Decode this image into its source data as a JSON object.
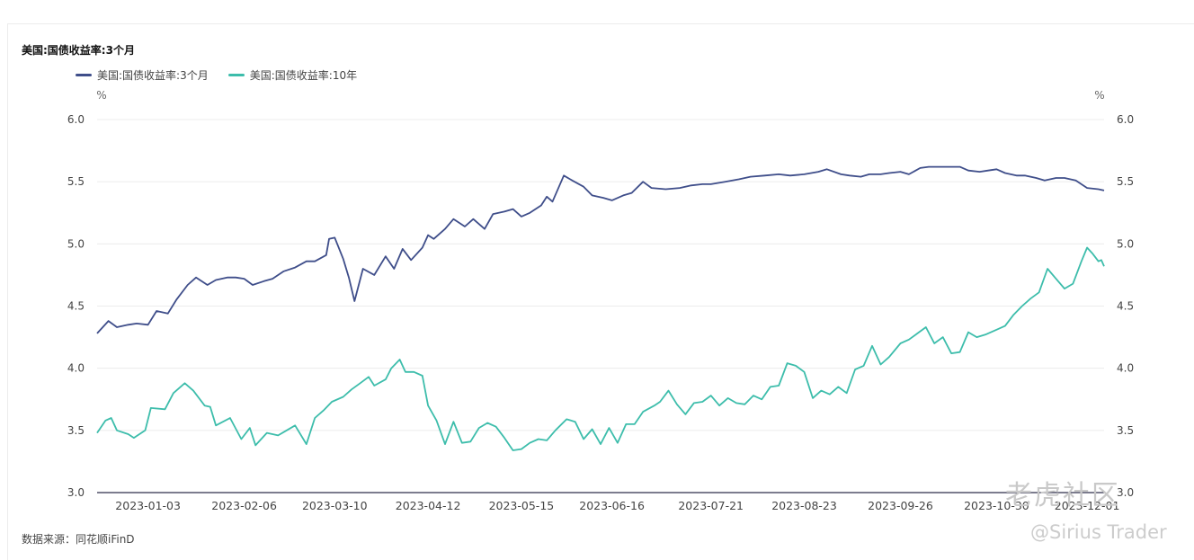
{
  "chart_data": {
    "type": "line",
    "title": "美国:国债收益率:3个月",
    "left_unit": "%",
    "right_unit": "%",
    "ylim": [
      3.0,
      6.0
    ],
    "y_ticks": [
      "3.0",
      "3.5",
      "4.0",
      "4.5",
      "5.0",
      "5.5",
      "6.0"
    ],
    "x_range": [
      "2022-12-16",
      "2023-12-07"
    ],
    "x_tick_labels": [
      "2023-01-03",
      "2023-02-06",
      "2023-03-10",
      "2023-04-12",
      "2023-05-15",
      "2023-06-16",
      "2023-07-21",
      "2023-08-23",
      "2023-09-26",
      "2023-10-30",
      "2023-12-01"
    ],
    "grid": "horizontal",
    "legend": "top-left",
    "series": [
      {
        "name": "美国:国债收益率:3个月",
        "color": "#3f4e8a",
        "points": [
          [
            "2022-12-16",
            4.28
          ],
          [
            "2022-12-20",
            4.38
          ],
          [
            "2022-12-23",
            4.33
          ],
          [
            "2022-12-27",
            4.35
          ],
          [
            "2022-12-30",
            4.36
          ],
          [
            "2023-01-03",
            4.35
          ],
          [
            "2023-01-06",
            4.46
          ],
          [
            "2023-01-10",
            4.44
          ],
          [
            "2023-01-13",
            4.55
          ],
          [
            "2023-01-17",
            4.67
          ],
          [
            "2023-01-20",
            4.73
          ],
          [
            "2023-01-24",
            4.67
          ],
          [
            "2023-01-27",
            4.71
          ],
          [
            "2023-01-31",
            4.73
          ],
          [
            "2023-02-03",
            4.73
          ],
          [
            "2023-02-06",
            4.72
          ],
          [
            "2023-02-09",
            4.67
          ],
          [
            "2023-02-13",
            4.7
          ],
          [
            "2023-02-16",
            4.72
          ],
          [
            "2023-02-20",
            4.78
          ],
          [
            "2023-02-24",
            4.81
          ],
          [
            "2023-02-28",
            4.86
          ],
          [
            "2023-03-03",
            4.86
          ],
          [
            "2023-03-07",
            4.91
          ],
          [
            "2023-03-08",
            5.04
          ],
          [
            "2023-03-10",
            5.05
          ],
          [
            "2023-03-13",
            4.88
          ],
          [
            "2023-03-15",
            4.73
          ],
          [
            "2023-03-17",
            4.54
          ],
          [
            "2023-03-20",
            4.8
          ],
          [
            "2023-03-24",
            4.75
          ],
          [
            "2023-03-28",
            4.9
          ],
          [
            "2023-03-31",
            4.8
          ],
          [
            "2023-04-03",
            4.96
          ],
          [
            "2023-04-06",
            4.87
          ],
          [
            "2023-04-10",
            4.97
          ],
          [
            "2023-04-12",
            5.07
          ],
          [
            "2023-04-14",
            5.04
          ],
          [
            "2023-04-18",
            5.12
          ],
          [
            "2023-04-21",
            5.2
          ],
          [
            "2023-04-25",
            5.14
          ],
          [
            "2023-04-28",
            5.2
          ],
          [
            "2023-05-02",
            5.12
          ],
          [
            "2023-05-05",
            5.24
          ],
          [
            "2023-05-09",
            5.26
          ],
          [
            "2023-05-12",
            5.28
          ],
          [
            "2023-05-15",
            5.22
          ],
          [
            "2023-05-18",
            5.25
          ],
          [
            "2023-05-22",
            5.31
          ],
          [
            "2023-05-24",
            5.38
          ],
          [
            "2023-05-26",
            5.34
          ],
          [
            "2023-05-30",
            5.55
          ],
          [
            "2023-06-02",
            5.51
          ],
          [
            "2023-06-06",
            5.46
          ],
          [
            "2023-06-09",
            5.39
          ],
          [
            "2023-06-13",
            5.37
          ],
          [
            "2023-06-16",
            5.35
          ],
          [
            "2023-06-20",
            5.39
          ],
          [
            "2023-06-23",
            5.41
          ],
          [
            "2023-06-27",
            5.5
          ],
          [
            "2023-06-30",
            5.45
          ],
          [
            "2023-07-05",
            5.44
          ],
          [
            "2023-07-10",
            5.45
          ],
          [
            "2023-07-14",
            5.47
          ],
          [
            "2023-07-18",
            5.48
          ],
          [
            "2023-07-21",
            5.48
          ],
          [
            "2023-07-26",
            5.5
          ],
          [
            "2023-07-31",
            5.52
          ],
          [
            "2023-08-04",
            5.54
          ],
          [
            "2023-08-09",
            5.55
          ],
          [
            "2023-08-14",
            5.56
          ],
          [
            "2023-08-18",
            5.55
          ],
          [
            "2023-08-23",
            5.56
          ],
          [
            "2023-08-28",
            5.58
          ],
          [
            "2023-08-31",
            5.6
          ],
          [
            "2023-09-05",
            5.56
          ],
          [
            "2023-09-08",
            5.55
          ],
          [
            "2023-09-12",
            5.54
          ],
          [
            "2023-09-15",
            5.56
          ],
          [
            "2023-09-19",
            5.56
          ],
          [
            "2023-09-22",
            5.57
          ],
          [
            "2023-09-26",
            5.58
          ],
          [
            "2023-09-29",
            5.56
          ],
          [
            "2023-10-03",
            5.61
          ],
          [
            "2023-10-06",
            5.62
          ],
          [
            "2023-10-10",
            5.62
          ],
          [
            "2023-10-13",
            5.62
          ],
          [
            "2023-10-17",
            5.62
          ],
          [
            "2023-10-20",
            5.59
          ],
          [
            "2023-10-24",
            5.58
          ],
          [
            "2023-10-27",
            5.59
          ],
          [
            "2023-10-30",
            5.6
          ],
          [
            "2023-11-02",
            5.57
          ],
          [
            "2023-11-06",
            5.55
          ],
          [
            "2023-11-09",
            5.55
          ],
          [
            "2023-11-13",
            5.53
          ],
          [
            "2023-11-16",
            5.51
          ],
          [
            "2023-11-20",
            5.53
          ],
          [
            "2023-11-23",
            5.53
          ],
          [
            "2023-11-27",
            5.51
          ],
          [
            "2023-12-01",
            5.45
          ],
          [
            "2023-12-05",
            5.44
          ],
          [
            "2023-12-07",
            5.43
          ]
        ]
      },
      {
        "name": "美国:国债收益率:10年",
        "color": "#3dbdab",
        "points": [
          [
            "2022-12-16",
            3.48
          ],
          [
            "2022-12-19",
            3.58
          ],
          [
            "2022-12-21",
            3.6
          ],
          [
            "2022-12-23",
            3.5
          ],
          [
            "2022-12-27",
            3.47
          ],
          [
            "2022-12-29",
            3.44
          ],
          [
            "2023-01-02",
            3.5
          ],
          [
            "2023-01-04",
            3.68
          ],
          [
            "2023-01-09",
            3.67
          ],
          [
            "2023-01-12",
            3.8
          ],
          [
            "2023-01-16",
            3.88
          ],
          [
            "2023-01-19",
            3.82
          ],
          [
            "2023-01-23",
            3.7
          ],
          [
            "2023-01-25",
            3.69
          ],
          [
            "2023-01-27",
            3.54
          ],
          [
            "2023-02-01",
            3.6
          ],
          [
            "2023-02-05",
            3.43
          ],
          [
            "2023-02-08",
            3.52
          ],
          [
            "2023-02-10",
            3.38
          ],
          [
            "2023-02-14",
            3.48
          ],
          [
            "2023-02-18",
            3.46
          ],
          [
            "2023-02-21",
            3.5
          ],
          [
            "2023-02-24",
            3.54
          ],
          [
            "2023-02-28",
            3.39
          ],
          [
            "2023-03-03",
            3.6
          ],
          [
            "2023-03-06",
            3.66
          ],
          [
            "2023-03-09",
            3.73
          ],
          [
            "2023-03-13",
            3.77
          ],
          [
            "2023-03-16",
            3.83
          ],
          [
            "2023-03-19",
            3.88
          ],
          [
            "2023-03-22",
            3.93
          ],
          [
            "2023-03-24",
            3.86
          ],
          [
            "2023-03-28",
            3.91
          ],
          [
            "2023-03-30",
            4.0
          ],
          [
            "2023-04-02",
            4.07
          ],
          [
            "2023-04-04",
            3.97
          ],
          [
            "2023-04-07",
            3.97
          ],
          [
            "2023-04-10",
            3.94
          ],
          [
            "2023-04-12",
            3.7
          ],
          [
            "2023-04-15",
            3.58
          ],
          [
            "2023-04-18",
            3.39
          ],
          [
            "2023-04-21",
            3.57
          ],
          [
            "2023-04-24",
            3.4
          ],
          [
            "2023-04-27",
            3.41
          ],
          [
            "2023-04-30",
            3.52
          ],
          [
            "2023-05-03",
            3.56
          ],
          [
            "2023-05-06",
            3.53
          ],
          [
            "2023-05-09",
            3.44
          ],
          [
            "2023-05-12",
            3.34
          ],
          [
            "2023-05-15",
            3.35
          ],
          [
            "2023-05-18",
            3.4
          ],
          [
            "2023-05-21",
            3.43
          ],
          [
            "2023-05-24",
            3.42
          ],
          [
            "2023-05-27",
            3.5
          ],
          [
            "2023-05-31",
            3.59
          ],
          [
            "2023-06-03",
            3.57
          ],
          [
            "2023-06-06",
            3.43
          ],
          [
            "2023-06-09",
            3.51
          ],
          [
            "2023-06-12",
            3.39
          ],
          [
            "2023-06-15",
            3.52
          ],
          [
            "2023-06-18",
            3.4
          ],
          [
            "2023-06-21",
            3.55
          ],
          [
            "2023-06-24",
            3.55
          ],
          [
            "2023-06-27",
            3.65
          ],
          [
            "2023-07-01",
            3.7
          ],
          [
            "2023-07-03",
            3.73
          ],
          [
            "2023-07-06",
            3.82
          ],
          [
            "2023-07-09",
            3.71
          ],
          [
            "2023-07-12",
            3.63
          ],
          [
            "2023-07-15",
            3.72
          ],
          [
            "2023-07-18",
            3.73
          ],
          [
            "2023-07-21",
            3.78
          ],
          [
            "2023-07-24",
            3.7
          ],
          [
            "2023-07-27",
            3.76
          ],
          [
            "2023-07-30",
            3.72
          ],
          [
            "2023-08-02",
            3.71
          ],
          [
            "2023-08-05",
            3.78
          ],
          [
            "2023-08-08",
            3.75
          ],
          [
            "2023-08-11",
            3.85
          ],
          [
            "2023-08-14",
            3.86
          ],
          [
            "2023-08-17",
            4.04
          ],
          [
            "2023-08-20",
            4.02
          ],
          [
            "2023-08-23",
            3.97
          ],
          [
            "2023-08-26",
            3.76
          ],
          [
            "2023-08-29",
            3.82
          ],
          [
            "2023-09-01",
            3.79
          ],
          [
            "2023-09-04",
            3.85
          ],
          [
            "2023-09-07",
            3.8
          ],
          [
            "2023-09-10",
            3.99
          ],
          [
            "2023-09-13",
            4.02
          ],
          [
            "2023-09-16",
            4.18
          ],
          [
            "2023-09-19",
            4.03
          ],
          [
            "2023-09-22",
            4.09
          ],
          [
            "2023-09-26",
            4.2
          ],
          [
            "2023-09-29",
            4.23
          ],
          [
            "2023-10-02",
            4.28
          ],
          [
            "2023-10-05",
            4.33
          ],
          [
            "2023-10-08",
            4.2
          ],
          [
            "2023-10-11",
            4.25
          ],
          [
            "2023-10-14",
            4.12
          ],
          [
            "2023-10-17",
            4.13
          ],
          [
            "2023-10-20",
            4.29
          ],
          [
            "2023-10-23",
            4.25
          ],
          [
            "2023-10-26",
            4.27
          ],
          [
            "2023-10-30",
            4.31
          ],
          [
            "2023-11-02",
            4.34
          ],
          [
            "2023-11-05",
            4.43
          ],
          [
            "2023-11-08",
            4.5
          ],
          [
            "2023-11-11",
            4.56
          ],
          [
            "2023-11-14",
            4.61
          ],
          [
            "2023-11-17",
            4.8
          ],
          [
            "2023-11-20",
            4.72
          ],
          [
            "2023-11-23",
            4.64
          ],
          [
            "2023-11-26",
            4.68
          ],
          [
            "2023-11-29",
            4.86
          ],
          [
            "2023-12-01",
            4.97
          ],
          [
            "2023-12-03",
            4.92
          ],
          [
            "2023-12-05",
            4.86
          ],
          [
            "2023-12-06",
            4.87
          ],
          [
            "2023-12-07",
            4.82
          ]
        ]
      }
    ]
  },
  "source_text": "数据来源：同花顺iFinD",
  "watermark": {
    "site": "老虎社区",
    "author": "@Sirius Trader"
  }
}
